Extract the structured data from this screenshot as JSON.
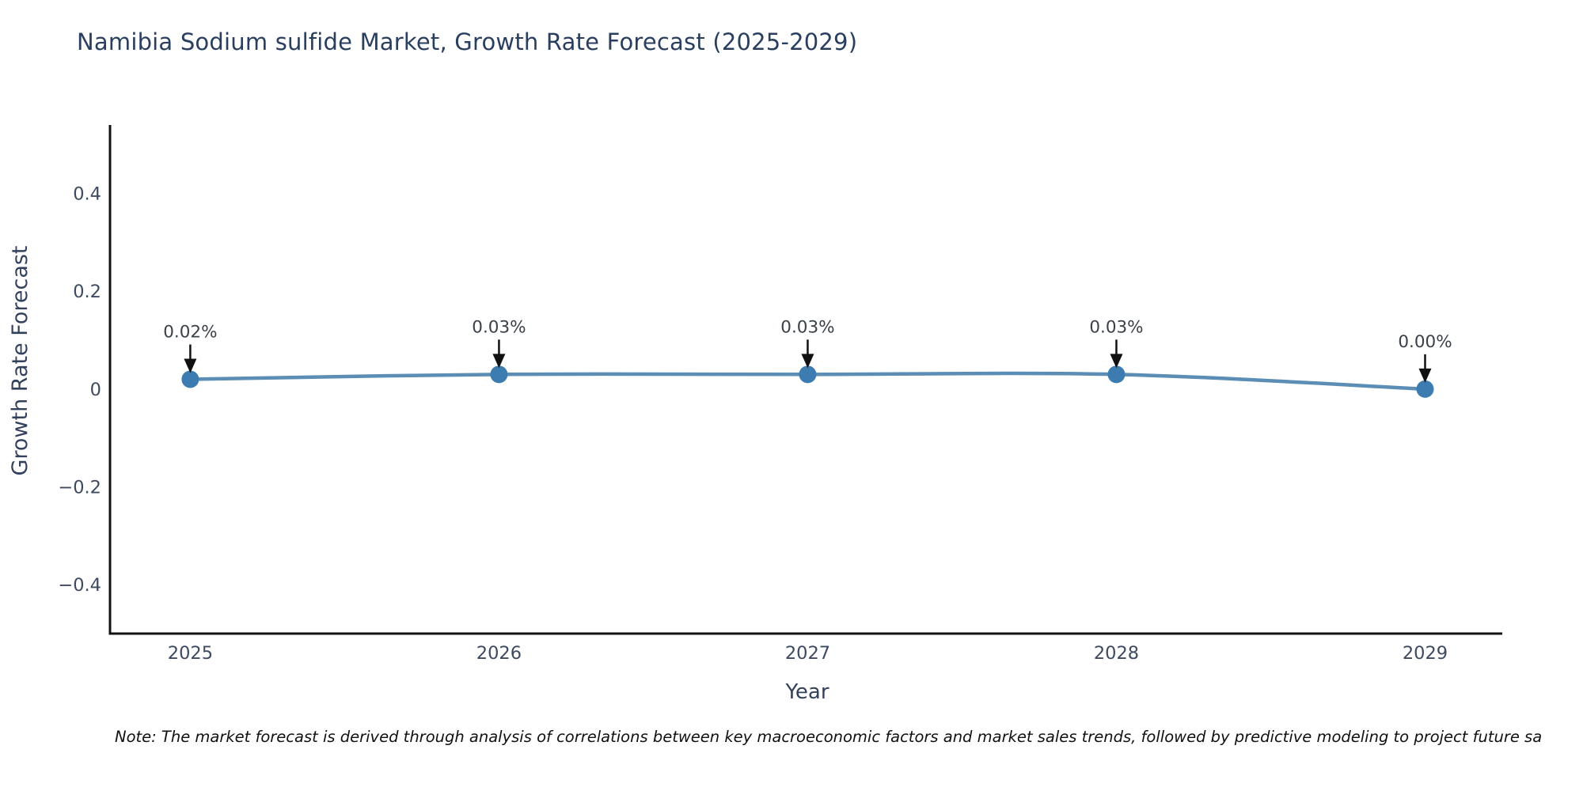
{
  "title": "Namibia Sodium sulfide Market, Growth Rate Forecast (2025-2029)",
  "note": "Note: The market forecast is derived through analysis of correlations between key macroeconomic factors and market sales trends, followed by predictive modeling to project future sa",
  "chart_data": {
    "type": "line",
    "title": "Namibia Sodium sulfide Market, Growth Rate Forecast (2025-2029)",
    "xlabel": "Year",
    "ylabel": "Growth Rate Forecast",
    "x": [
      2025,
      2026,
      2027,
      2028,
      2029
    ],
    "values": [
      0.02,
      0.03,
      0.03,
      0.03,
      0.0
    ],
    "point_labels": [
      "0.02%",
      "0.03%",
      "0.03%",
      "0.03%",
      "0.00%"
    ],
    "xticks": [
      {
        "label": "2025",
        "value": 2025
      },
      {
        "label": "2026",
        "value": 2026
      },
      {
        "label": "2027",
        "value": 2027
      },
      {
        "label": "2028",
        "value": 2028
      },
      {
        "label": "2029",
        "value": 2029
      }
    ],
    "yticks": [
      {
        "label": "0.4",
        "value": 0.4
      },
      {
        "label": "0.2",
        "value": 0.2
      },
      {
        "label": "0",
        "value": 0
      },
      {
        "label": "−0.2",
        "value": -0.2
      },
      {
        "label": "−0.4",
        "value": -0.4
      }
    ],
    "xlim": [
      2024.74,
      2029.25
    ],
    "ylim": [
      -0.5,
      0.54
    ],
    "grid": false,
    "legend": null,
    "colors": {
      "line": "#5b8db5",
      "marker": "#3c7cb0",
      "arrow": "#111111",
      "spine": "#111111",
      "tick_text": "#3e4a61",
      "annotation_text": "#3a4149",
      "title_text": "#2a3f5f"
    }
  }
}
